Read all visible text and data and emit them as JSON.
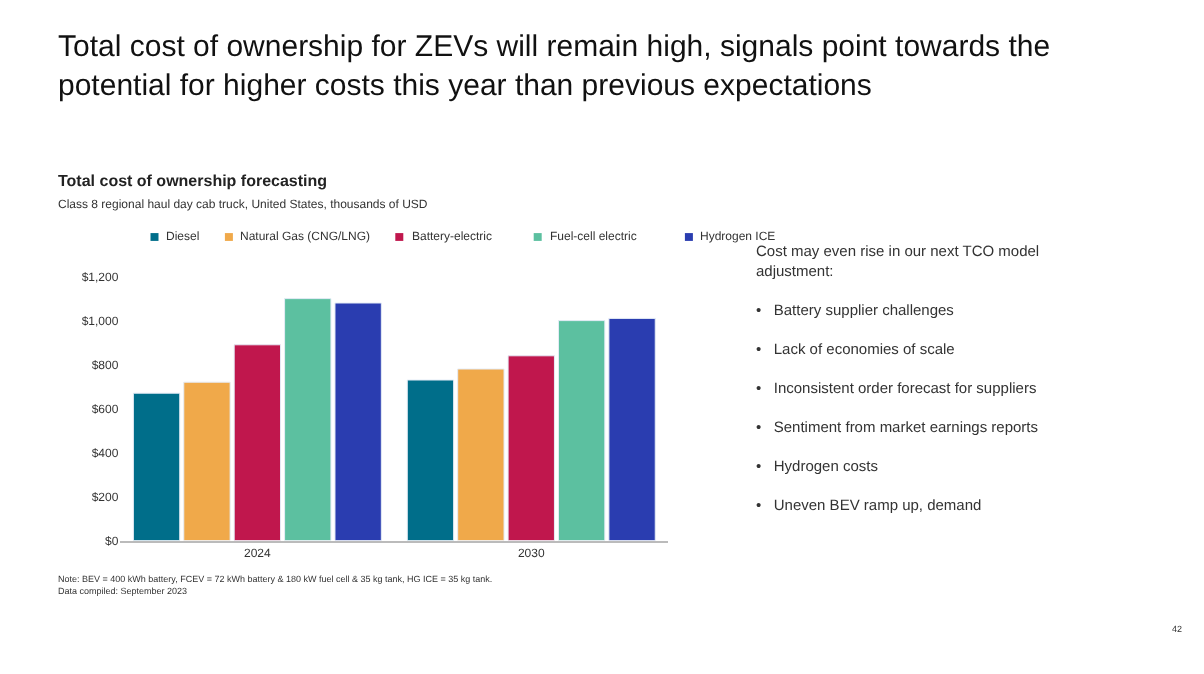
{
  "chart_data": {
    "type": "bar",
    "title": "Total cost of ownership for ZEVs will remain high, signals point towards the\npotential for higher costs this year than previous expectations",
    "subtitle": "Total cost of ownership forecasting",
    "annotations": [
      "Class 8 regional haul day cab truck, United States, thousands of USD",
      "Cost may even rise in our next TCO model\nadjustment:\n\n•   Battery supplier challenges\n\n•   Lack of economies of scale\n\n•   Inconsistent order forecast for suppliers\n\n•   Sentiment from market earnings reports\n\n•   Hydrogen costs\n\n•   Uneven BEV ramp up, demand",
      "Note: BEV = 400 kWh battery, FCEV = 72 kWh battery & 180 kW fuel cell & 35 kg tank, HG ICE = 35 kg tank.\nData compiled: September 2023",
      "42"
    ],
    "categories": [
      "2024",
      "2030"
    ],
    "series": [
      {
        "name": "Diesel",
        "color": "#006e8a",
        "values": [
          670,
          730
        ]
      },
      {
        "name": "Natural Gas (CNG/LNG)",
        "color": "#f0a94a",
        "values": [
          720,
          780
        ]
      },
      {
        "name": "Battery-electric",
        "color": "#c0174d",
        "values": [
          890,
          840
        ]
      },
      {
        "name": "Fuel-cell electric",
        "color": "#5cc0a0",
        "values": [
          1100,
          1000
        ]
      },
      {
        "name": "Hydrogen ICE",
        "color": "#2a3db0",
        "values": [
          1080,
          1010
        ]
      }
    ],
    "ylim": [
      0,
      1200
    ],
    "yticks": [
      {
        "value": 0,
        "label": "$0"
      },
      {
        "value": 200,
        "label": "$200"
      },
      {
        "value": 400,
        "label": "$400"
      },
      {
        "value": 600,
        "label": "$600"
      },
      {
        "value": 800,
        "label": "$800"
      },
      {
        "value": 1000,
        "label": "$1,000"
      },
      {
        "value": 1200,
        "label": "$1,200"
      }
    ],
    "legend": "top"
  }
}
